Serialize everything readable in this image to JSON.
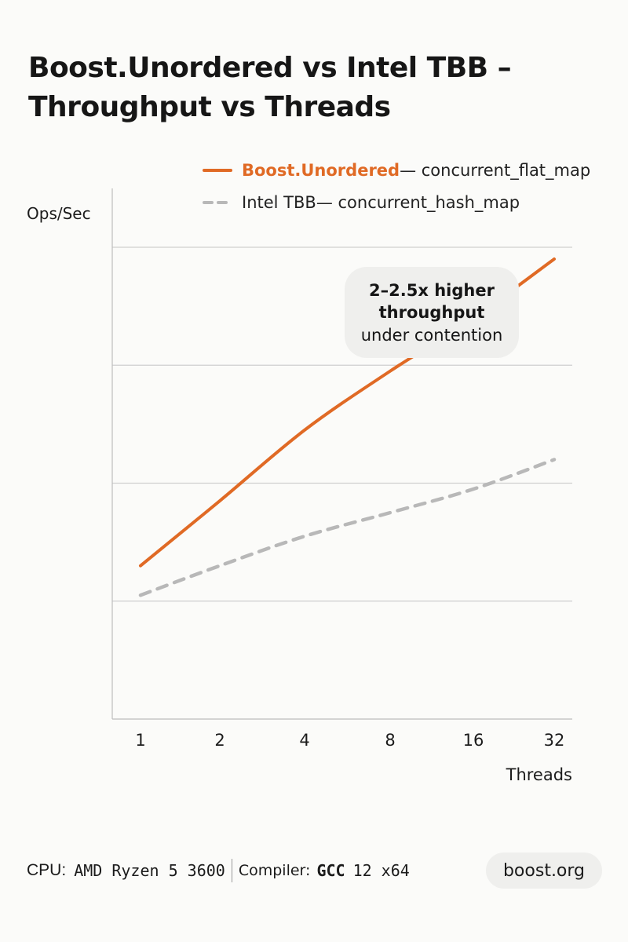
{
  "title_line1": "Boost.Unordered vs Intel TBB –",
  "title_line2": "Throughput vs Threads",
  "legend": {
    "boost_name": "Boost.Unordered",
    "boost_desc": " — concurrent_flat_map",
    "tbb_name": "Intel TBB",
    "tbb_desc": " — concurrent_hash_map"
  },
  "annotation": {
    "line1": "2–2.5x higher",
    "line2": "throughput",
    "line3": "under contention"
  },
  "footer": {
    "cpu_label": "CPU:",
    "cpu_value": "AMD Ryzen 5 3600",
    "compiler_label": "Compiler:",
    "compiler_value": "GCC",
    "compiler_version": "12 x64",
    "site": "boost.org"
  },
  "colors": {
    "boost": "#e06a25",
    "tbb": "#b8b8b8",
    "grid": "#cfcfcf",
    "axis": "#bdbdbd",
    "annotation_bg": "#efefed"
  },
  "chart_data": {
    "type": "line",
    "title": "Boost.Unordered vs Intel TBB – Throughput vs Threads",
    "xlabel": "Threads",
    "ylabel": "Ops/Sec",
    "x": [
      "1",
      "2",
      "4",
      "8",
      "16",
      "32"
    ],
    "x_scale": "categorical (powers of two)",
    "ylim": [
      0,
      4
    ],
    "y_tick_labels": "none",
    "grid": "horizontal",
    "legend_position": "top-right",
    "series": [
      {
        "name": "Boost.Unordered — concurrent_flat_map",
        "style": "solid",
        "values": [
          1.3,
          1.85,
          2.45,
          2.95,
          3.4,
          3.9
        ]
      },
      {
        "name": "Intel TBB — concurrent_hash_map",
        "style": "dashed",
        "values": [
          1.05,
          1.3,
          1.55,
          1.75,
          1.95,
          2.2
        ]
      }
    ],
    "annotations": [
      "2–2.5x higher throughput under contention"
    ]
  }
}
